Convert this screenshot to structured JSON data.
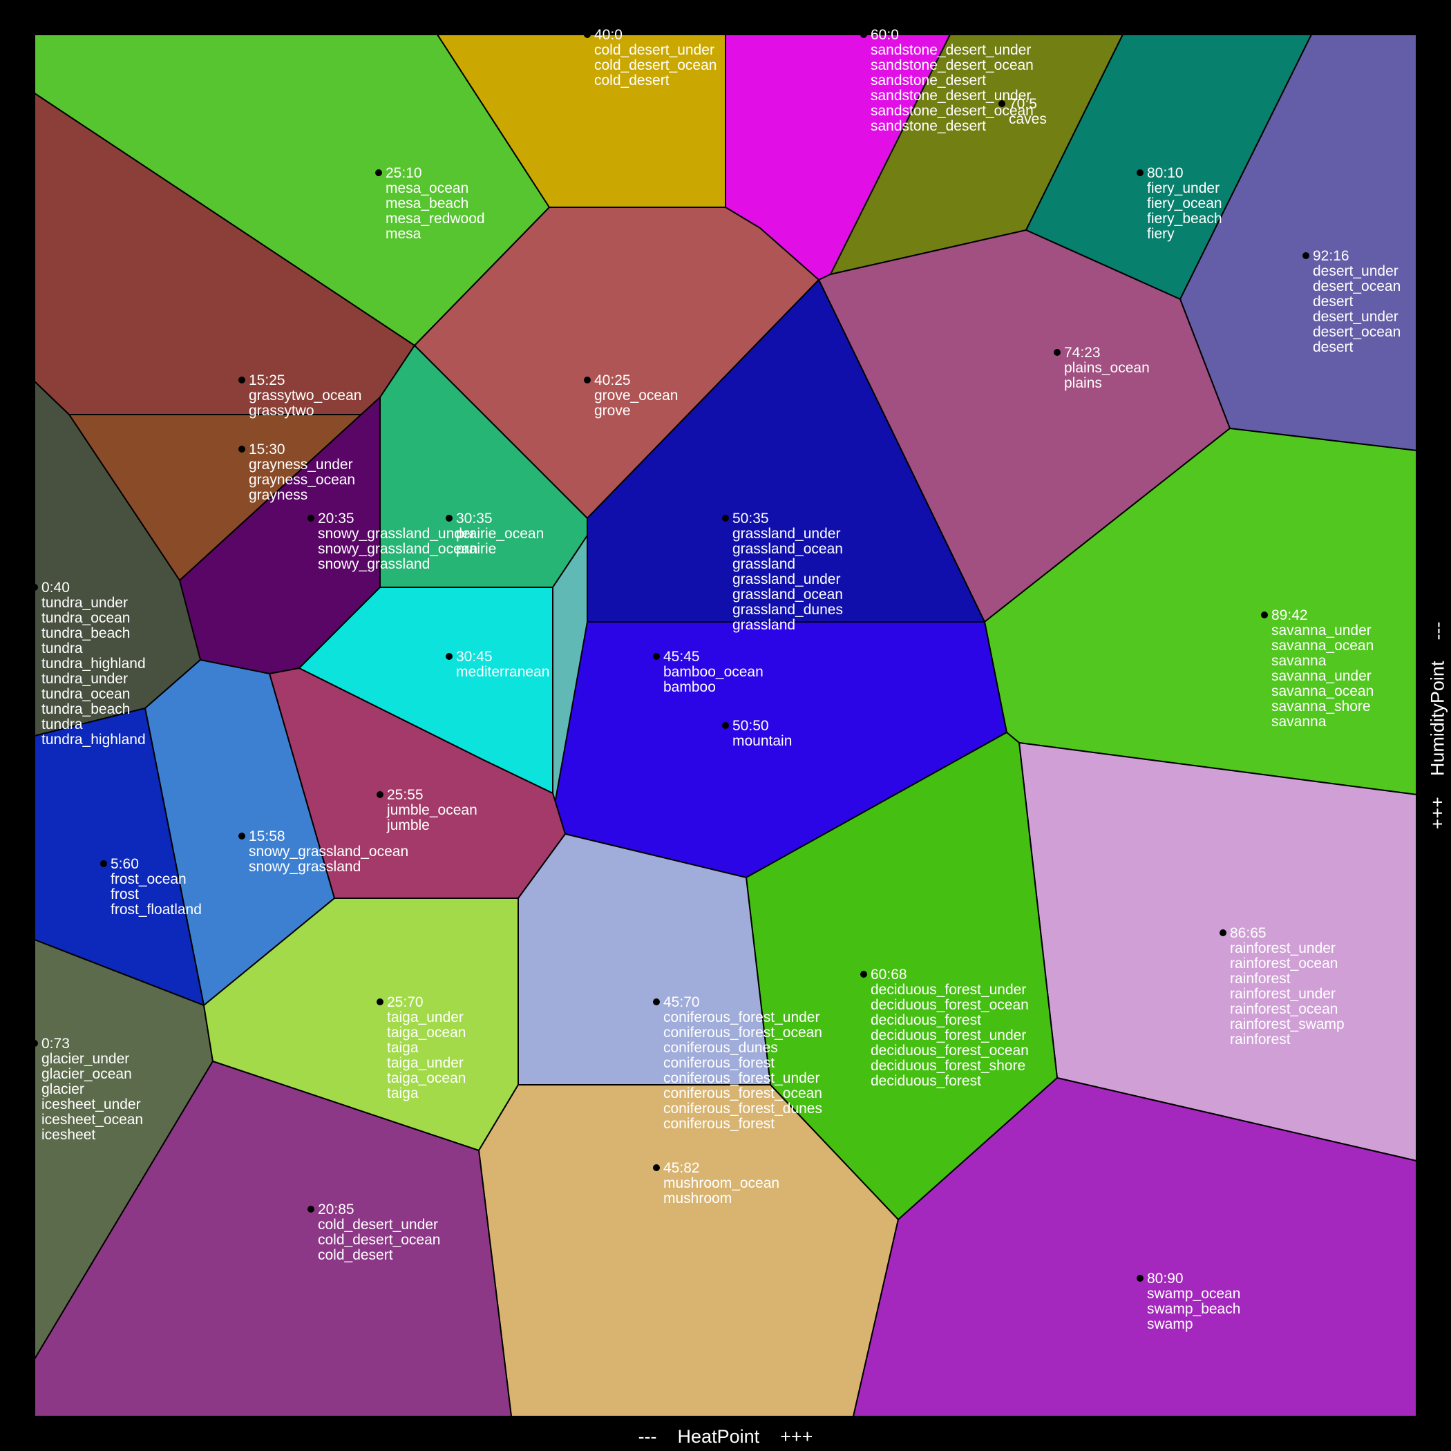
{
  "axes": {
    "x_label": "---    HeatPoint    +++",
    "y_label": "+++    HumidityPoint    ---"
  },
  "regions": [
    {
      "point": "25:10",
      "biomes": [
        "mesa_ocean",
        "mesa_beach",
        "mesa_redwood",
        "mesa"
      ],
      "color": "#57c52f"
    },
    {
      "point": "40:0",
      "biomes": [
        "cold_desert_under",
        "cold_desert_ocean",
        "cold_desert"
      ],
      "color": "#cba801"
    },
    {
      "point": "60:0",
      "biomes": [
        "sandstone_desert_under",
        "sandstone_desert_ocean",
        "sandstone_desert",
        "sandstone_desert_under",
        "sandstone_desert_ocean",
        "sandstone_desert"
      ],
      "color": "#e10ee6"
    },
    {
      "point": "70:5",
      "biomes": [
        "caves"
      ],
      "color": "#717f13"
    },
    {
      "point": "80:10",
      "biomes": [
        "fiery_under",
        "fiery_ocean",
        "fiery_beach",
        "fiery"
      ],
      "color": "#07806e"
    },
    {
      "point": "92:16",
      "biomes": [
        "desert_under",
        "desert_ocean",
        "desert",
        "desert_under",
        "desert_ocean",
        "desert"
      ],
      "color": "#645da7"
    },
    {
      "point": "15:25",
      "biomes": [
        "grassytwo_ocean",
        "grassytwo"
      ],
      "color": "#8b3f38"
    },
    {
      "point": "40:25",
      "biomes": [
        "grove_ocean",
        "grove"
      ],
      "color": "#b05555"
    },
    {
      "point": "74:23",
      "biomes": [
        "plains_ocean",
        "plains"
      ],
      "color": "#a24f81"
    },
    {
      "point": "15:30",
      "biomes": [
        "grayness_under",
        "grayness_ocean",
        "grayness"
      ],
      "color": "#8a4b28"
    },
    {
      "point": "20:35",
      "biomes": [
        "snowy_grassland_under",
        "snowy_grassland_ocean",
        "snowy_grassland"
      ],
      "color": "#590666"
    },
    {
      "point": "30:35",
      "biomes": [
        "prairie_ocean",
        "prairie"
      ],
      "color": "#27b575"
    },
    {
      "point": "50:35",
      "biomes": [
        "grassland_under",
        "grassland_ocean",
        "grassland",
        "grassland_under",
        "grassland_ocean",
        "grassland_dunes",
        "grassland"
      ],
      "color": "#100fac"
    },
    {
      "point": "0:40",
      "biomes": [
        "tundra_under",
        "tundra_ocean",
        "tundra_beach",
        "tundra",
        "tundra_highland",
        "tundra_under",
        "tundra_ocean",
        "tundra_beach",
        "tundra",
        "tundra_highland"
      ],
      "color": "#485140"
    },
    {
      "point": "89:42",
      "biomes": [
        "savanna_under",
        "savanna_ocean",
        "savanna",
        "savanna_under",
        "savanna_ocean",
        "savanna_shore",
        "savanna"
      ],
      "color": "#52c71f"
    },
    {
      "point": "30:45",
      "biomes": [
        "mediterranean"
      ],
      "color": "#0ce3dc"
    },
    {
      "point": "45:45",
      "biomes": [
        "bamboo_ocean",
        "bamboo"
      ],
      "color": "#60b9b5"
    },
    {
      "point": "50:50",
      "biomes": [
        "mountain"
      ],
      "color": "#2b05e6"
    },
    {
      "point": "25:55",
      "biomes": [
        "jumble_ocean",
        "jumble"
      ],
      "color": "#a43a69"
    },
    {
      "point": "15:58",
      "biomes": [
        "snowy_grassland_ocean",
        "snowy_grassland"
      ],
      "color": "#3d80d2"
    },
    {
      "point": "5:60",
      "biomes": [
        "frost_ocean",
        "frost",
        "frost_floatland"
      ],
      "color": "#0c29bb"
    },
    {
      "point": "86:65",
      "biomes": [
        "rainforest_under",
        "rainforest_ocean",
        "rainforest",
        "rainforest_under",
        "rainforest_ocean",
        "rainforest_swamp",
        "rainforest"
      ],
      "color": "#cf9fd6"
    },
    {
      "point": "60:68",
      "biomes": [
        "deciduous_forest_under",
        "deciduous_forest_ocean",
        "deciduous_forest",
        "deciduous_forest_under",
        "deciduous_forest_ocean",
        "deciduous_forest_shore",
        "deciduous_forest"
      ],
      "color": "#45bf11"
    },
    {
      "point": "0:73",
      "biomes": [
        "glacier_under",
        "glacier_ocean",
        "glacier",
        "icesheet_under",
        "icesheet_ocean",
        "icesheet"
      ],
      "color": "#5c6b4b"
    },
    {
      "point": "25:70",
      "biomes": [
        "taiga_under",
        "taiga_ocean",
        "taiga",
        "taiga_under",
        "taiga_ocean",
        "taiga"
      ],
      "color": "#a2da49"
    },
    {
      "point": "45:70",
      "biomes": [
        "coniferous_forest_under",
        "coniferous_forest_ocean",
        "coniferous_dunes",
        "coniferous_forest",
        "coniferous_forest_under",
        "coniferous_forest_ocean",
        "coniferous_forest_dunes",
        "coniferous_forest"
      ],
      "color": "#a0acd9"
    },
    {
      "point": "45:82",
      "biomes": [
        "mushroom_ocean",
        "mushroom"
      ],
      "color": "#d9b471"
    },
    {
      "point": "20:85",
      "biomes": [
        "cold_desert_under",
        "cold_desert_ocean",
        "cold_desert"
      ],
      "color": "#8d3887"
    },
    {
      "point": "80:90",
      "biomes": [
        "swamp_ocean",
        "swamp_beach",
        "swamp"
      ],
      "color": "#a428bd"
    }
  ]
}
